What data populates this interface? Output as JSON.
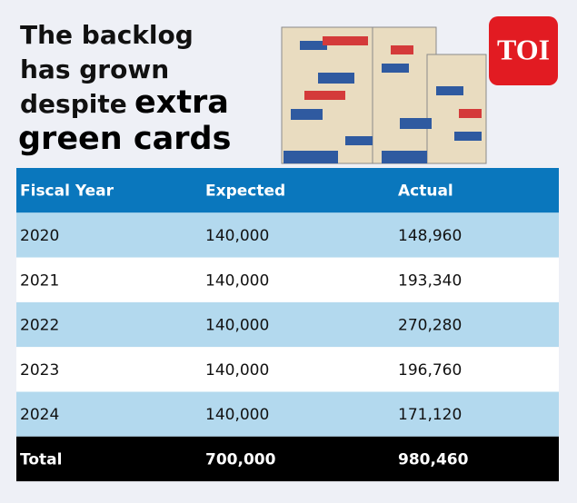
{
  "header": {
    "title_lines": [
      "The backlog",
      "has grown",
      "despite"
    ],
    "title_bold_lines": [
      "extra",
      "green cards"
    ],
    "logo": "TOI"
  },
  "table": {
    "columns": [
      "Fiscal Year",
      "Expected",
      "Actual"
    ],
    "rows": [
      [
        "2020",
        "140,000",
        "148,960"
      ],
      [
        "2021",
        "140,000",
        "193,340"
      ],
      [
        "2022",
        "140,000",
        "270,280"
      ],
      [
        "2023",
        "140,000",
        "196,760"
      ],
      [
        "2024",
        "140,000",
        "171,120"
      ]
    ],
    "total": [
      "Total",
      "700,000",
      "980,460"
    ]
  }
}
